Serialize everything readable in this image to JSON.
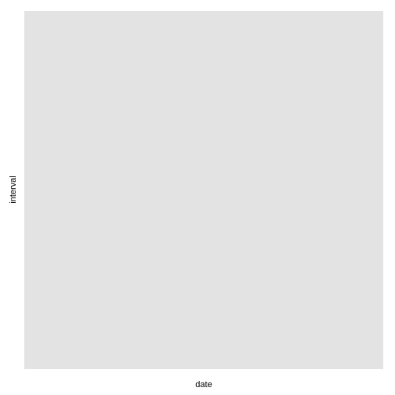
{
  "chart_data": {
    "type": "scatter",
    "title": "",
    "xlabel": "date",
    "ylabel": "interval",
    "series": [],
    "panel_color": "#e3e3e3",
    "background_color": "#ffffff",
    "grid": false,
    "legend": "none"
  }
}
